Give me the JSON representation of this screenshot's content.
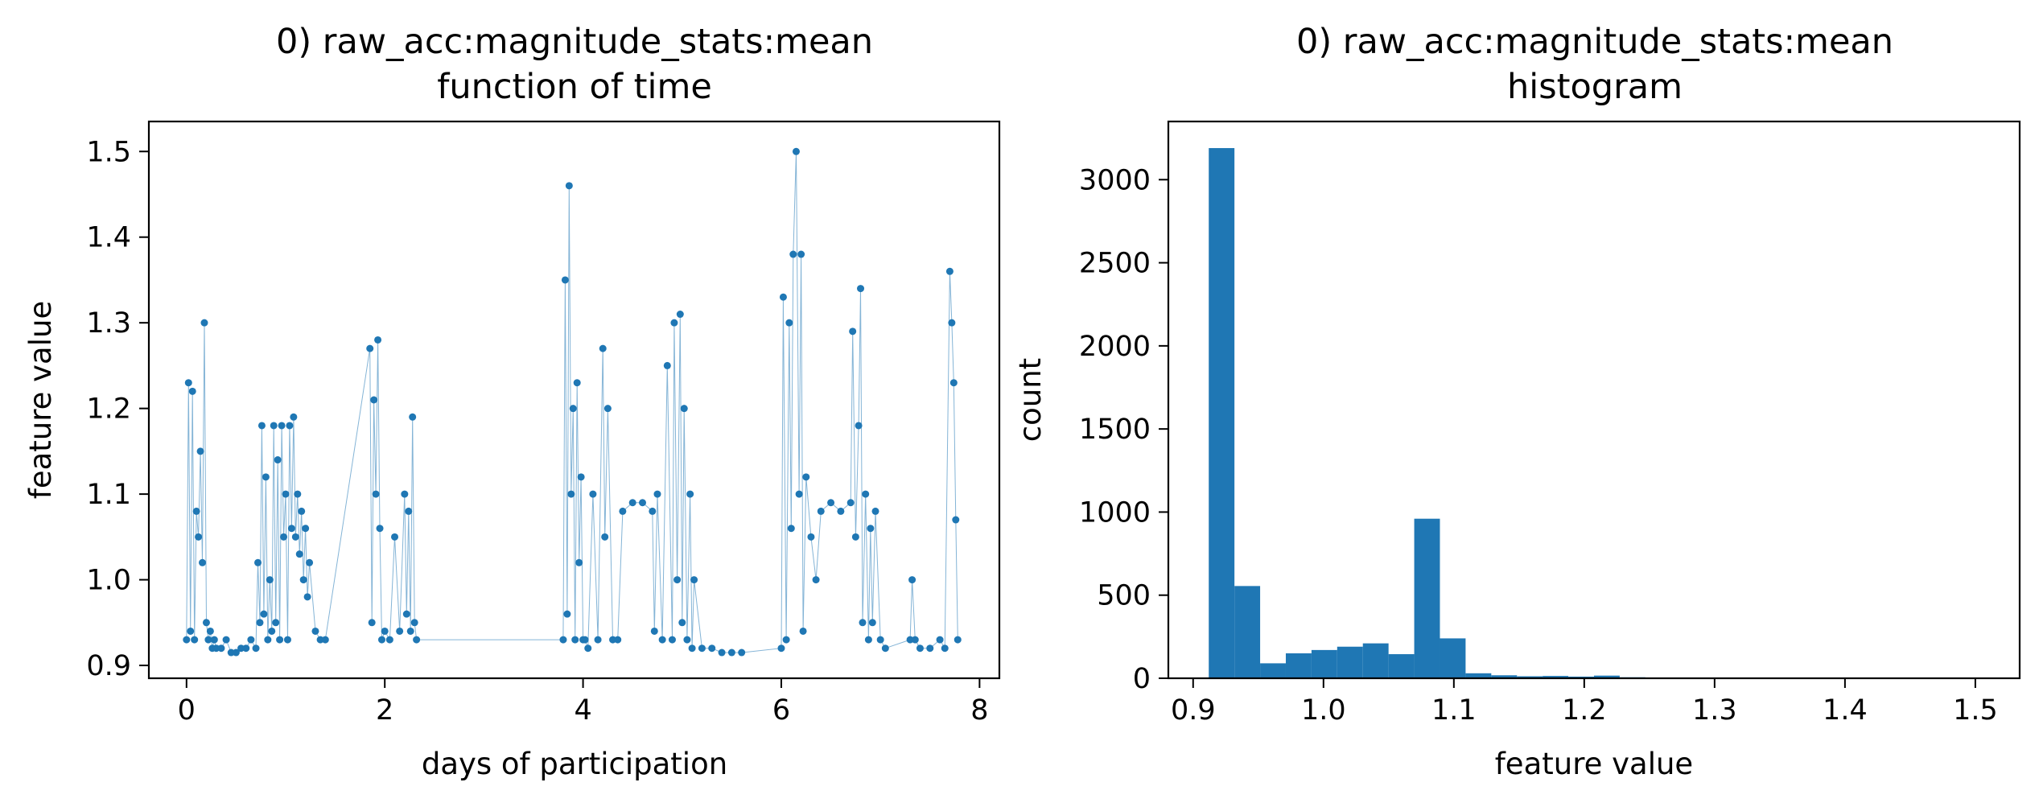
{
  "chart_data": [
    {
      "type": "scatter",
      "title_line1": "0) raw_acc:magnitude_stats:mean",
      "title_line2": "function of time",
      "xlabel": "days of participation",
      "ylabel": "feature value",
      "xlim": [
        -0.38,
        8.2
      ],
      "ylim": [
        0.885,
        1.535
      ],
      "xticks": [
        0,
        2,
        4,
        6,
        8
      ],
      "xtick_labels": [
        "0",
        "2",
        "4",
        "6",
        "8"
      ],
      "yticks": [
        0.9,
        1.0,
        1.1,
        1.2,
        1.3,
        1.4,
        1.5
      ],
      "ytick_labels": [
        "0.9",
        "1.0",
        "1.1",
        "1.2",
        "1.3",
        "1.4",
        "1.5"
      ],
      "color": "#1f77b4",
      "marker": "point with thin connecting line",
      "series": [
        {
          "x": [
            0.0,
            0.02,
            0.04,
            0.06,
            0.08,
            0.1,
            0.12,
            0.14,
            0.16,
            0.18,
            0.2,
            0.22,
            0.24,
            0.26,
            0.28,
            0.3,
            0.35,
            0.4,
            0.45,
            0.5,
            0.55,
            0.6,
            0.65,
            0.7,
            0.72,
            0.74,
            0.76,
            0.78,
            0.8,
            0.82,
            0.84,
            0.86,
            0.88,
            0.9,
            0.92,
            0.94,
            0.96,
            0.98,
            1.0,
            1.02,
            1.04,
            1.06,
            1.08,
            1.1,
            1.12,
            1.14,
            1.16,
            1.18,
            1.2,
            1.22,
            1.24,
            1.3,
            1.35,
            1.4,
            1.85,
            1.87,
            1.89,
            1.91,
            1.93,
            1.95,
            1.97,
            2.0,
            2.05,
            2.1,
            2.15,
            2.2,
            2.22,
            2.24,
            2.26,
            2.28,
            2.3,
            2.32,
            3.8,
            3.82,
            3.84,
            3.86,
            3.88,
            3.9,
            3.92,
            3.94,
            3.96,
            3.98,
            4.0,
            4.02,
            4.05,
            4.1,
            4.15,
            4.2,
            4.22,
            4.25,
            4.3,
            4.35,
            4.4,
            4.5,
            4.6,
            4.7,
            4.72,
            4.75,
            4.8,
            4.85,
            4.9,
            4.92,
            4.95,
            4.98,
            5.0,
            5.02,
            5.05,
            5.08,
            5.1,
            5.12,
            5.2,
            5.3,
            5.4,
            5.5,
            5.6,
            6.0,
            6.02,
            6.05,
            6.08,
            6.1,
            6.12,
            6.15,
            6.18,
            6.2,
            6.22,
            6.25,
            6.3,
            6.35,
            6.4,
            6.5,
            6.6,
            6.7,
            6.72,
            6.75,
            6.78,
            6.8,
            6.82,
            6.85,
            6.88,
            6.9,
            6.92,
            6.95,
            7.0,
            7.05,
            7.3,
            7.32,
            7.35,
            7.4,
            7.5,
            7.6,
            7.65,
            7.7,
            7.72,
            7.74,
            7.76,
            7.78
          ],
          "y": [
            0.93,
            1.23,
            0.94,
            1.22,
            0.93,
            1.08,
            1.05,
            1.15,
            1.02,
            1.3,
            0.95,
            0.93,
            0.94,
            0.92,
            0.93,
            0.92,
            0.92,
            0.93,
            0.915,
            0.915,
            0.92,
            0.92,
            0.93,
            0.92,
            1.02,
            0.95,
            1.18,
            0.96,
            1.12,
            0.93,
            1.0,
            0.94,
            1.18,
            0.95,
            1.14,
            0.93,
            1.18,
            1.05,
            1.1,
            0.93,
            1.18,
            1.06,
            1.19,
            1.05,
            1.1,
            1.03,
            1.08,
            1.0,
            1.06,
            0.98,
            1.02,
            0.94,
            0.93,
            0.93,
            1.27,
            0.95,
            1.21,
            1.1,
            1.28,
            1.06,
            0.93,
            0.94,
            0.93,
            1.05,
            0.94,
            1.1,
            0.96,
            1.08,
            0.94,
            1.19,
            0.95,
            0.93,
            0.93,
            1.35,
            0.96,
            1.46,
            1.1,
            1.2,
            0.93,
            1.23,
            1.02,
            1.12,
            0.93,
            0.93,
            0.92,
            1.1,
            0.93,
            1.27,
            1.05,
            1.2,
            0.93,
            0.93,
            1.08,
            1.09,
            1.09,
            1.08,
            0.94,
            1.1,
            0.93,
            1.25,
            0.93,
            1.3,
            1.0,
            1.31,
            0.95,
            1.2,
            0.93,
            1.1,
            0.92,
            1.0,
            0.92,
            0.92,
            0.915,
            0.915,
            0.915,
            0.92,
            1.33,
            0.93,
            1.3,
            1.06,
            1.38,
            1.5,
            1.1,
            1.38,
            0.94,
            1.12,
            1.05,
            1.0,
            1.08,
            1.09,
            1.08,
            1.09,
            1.29,
            1.05,
            1.18,
            1.34,
            0.95,
            1.1,
            0.93,
            1.06,
            0.95,
            1.08,
            0.93,
            0.92,
            0.93,
            1.0,
            0.93,
            0.92,
            0.92,
            0.93,
            0.92,
            1.36,
            1.3,
            1.23,
            1.07,
            0.93
          ]
        }
      ]
    },
    {
      "type": "bar",
      "subtype": "histogram",
      "title_line1": "0) raw_acc:magnitude_stats:mean",
      "title_line2": "histogram",
      "xlabel": "feature value",
      "ylabel": "count",
      "xlim": [
        0.881,
        1.534
      ],
      "ylim": [
        0,
        3350
      ],
      "xticks": [
        0.9,
        1.0,
        1.1,
        1.2,
        1.3,
        1.4,
        1.5
      ],
      "xtick_labels": [
        "0.9",
        "1.0",
        "1.1",
        "1.2",
        "1.3",
        "1.4",
        "1.5"
      ],
      "yticks": [
        0,
        500,
        1000,
        1500,
        2000,
        2500,
        3000
      ],
      "ytick_labels": [
        "0",
        "500",
        "1000",
        "1500",
        "2000",
        "2500",
        "3000"
      ],
      "color": "#1f77b4",
      "bin_edges": [
        0.912,
        0.9317,
        0.9514,
        0.9711,
        0.9908,
        1.0105,
        1.0302,
        1.0499,
        1.0696,
        1.0893,
        1.109,
        1.1287,
        1.1484,
        1.1681,
        1.1878,
        1.2075,
        1.2272,
        1.2469,
        1.2666,
        1.2863,
        1.306,
        1.3257,
        1.3454,
        1.3651,
        1.3848,
        1.4045,
        1.4242,
        1.4439,
        1.4636,
        1.4833,
        1.503
      ],
      "counts": [
        3190,
        555,
        90,
        150,
        170,
        190,
        210,
        145,
        960,
        240,
        30,
        18,
        12,
        14,
        10,
        16,
        6,
        4,
        3,
        3,
        2,
        2,
        1,
        1,
        1,
        1,
        1,
        1,
        1,
        1
      ]
    }
  ]
}
